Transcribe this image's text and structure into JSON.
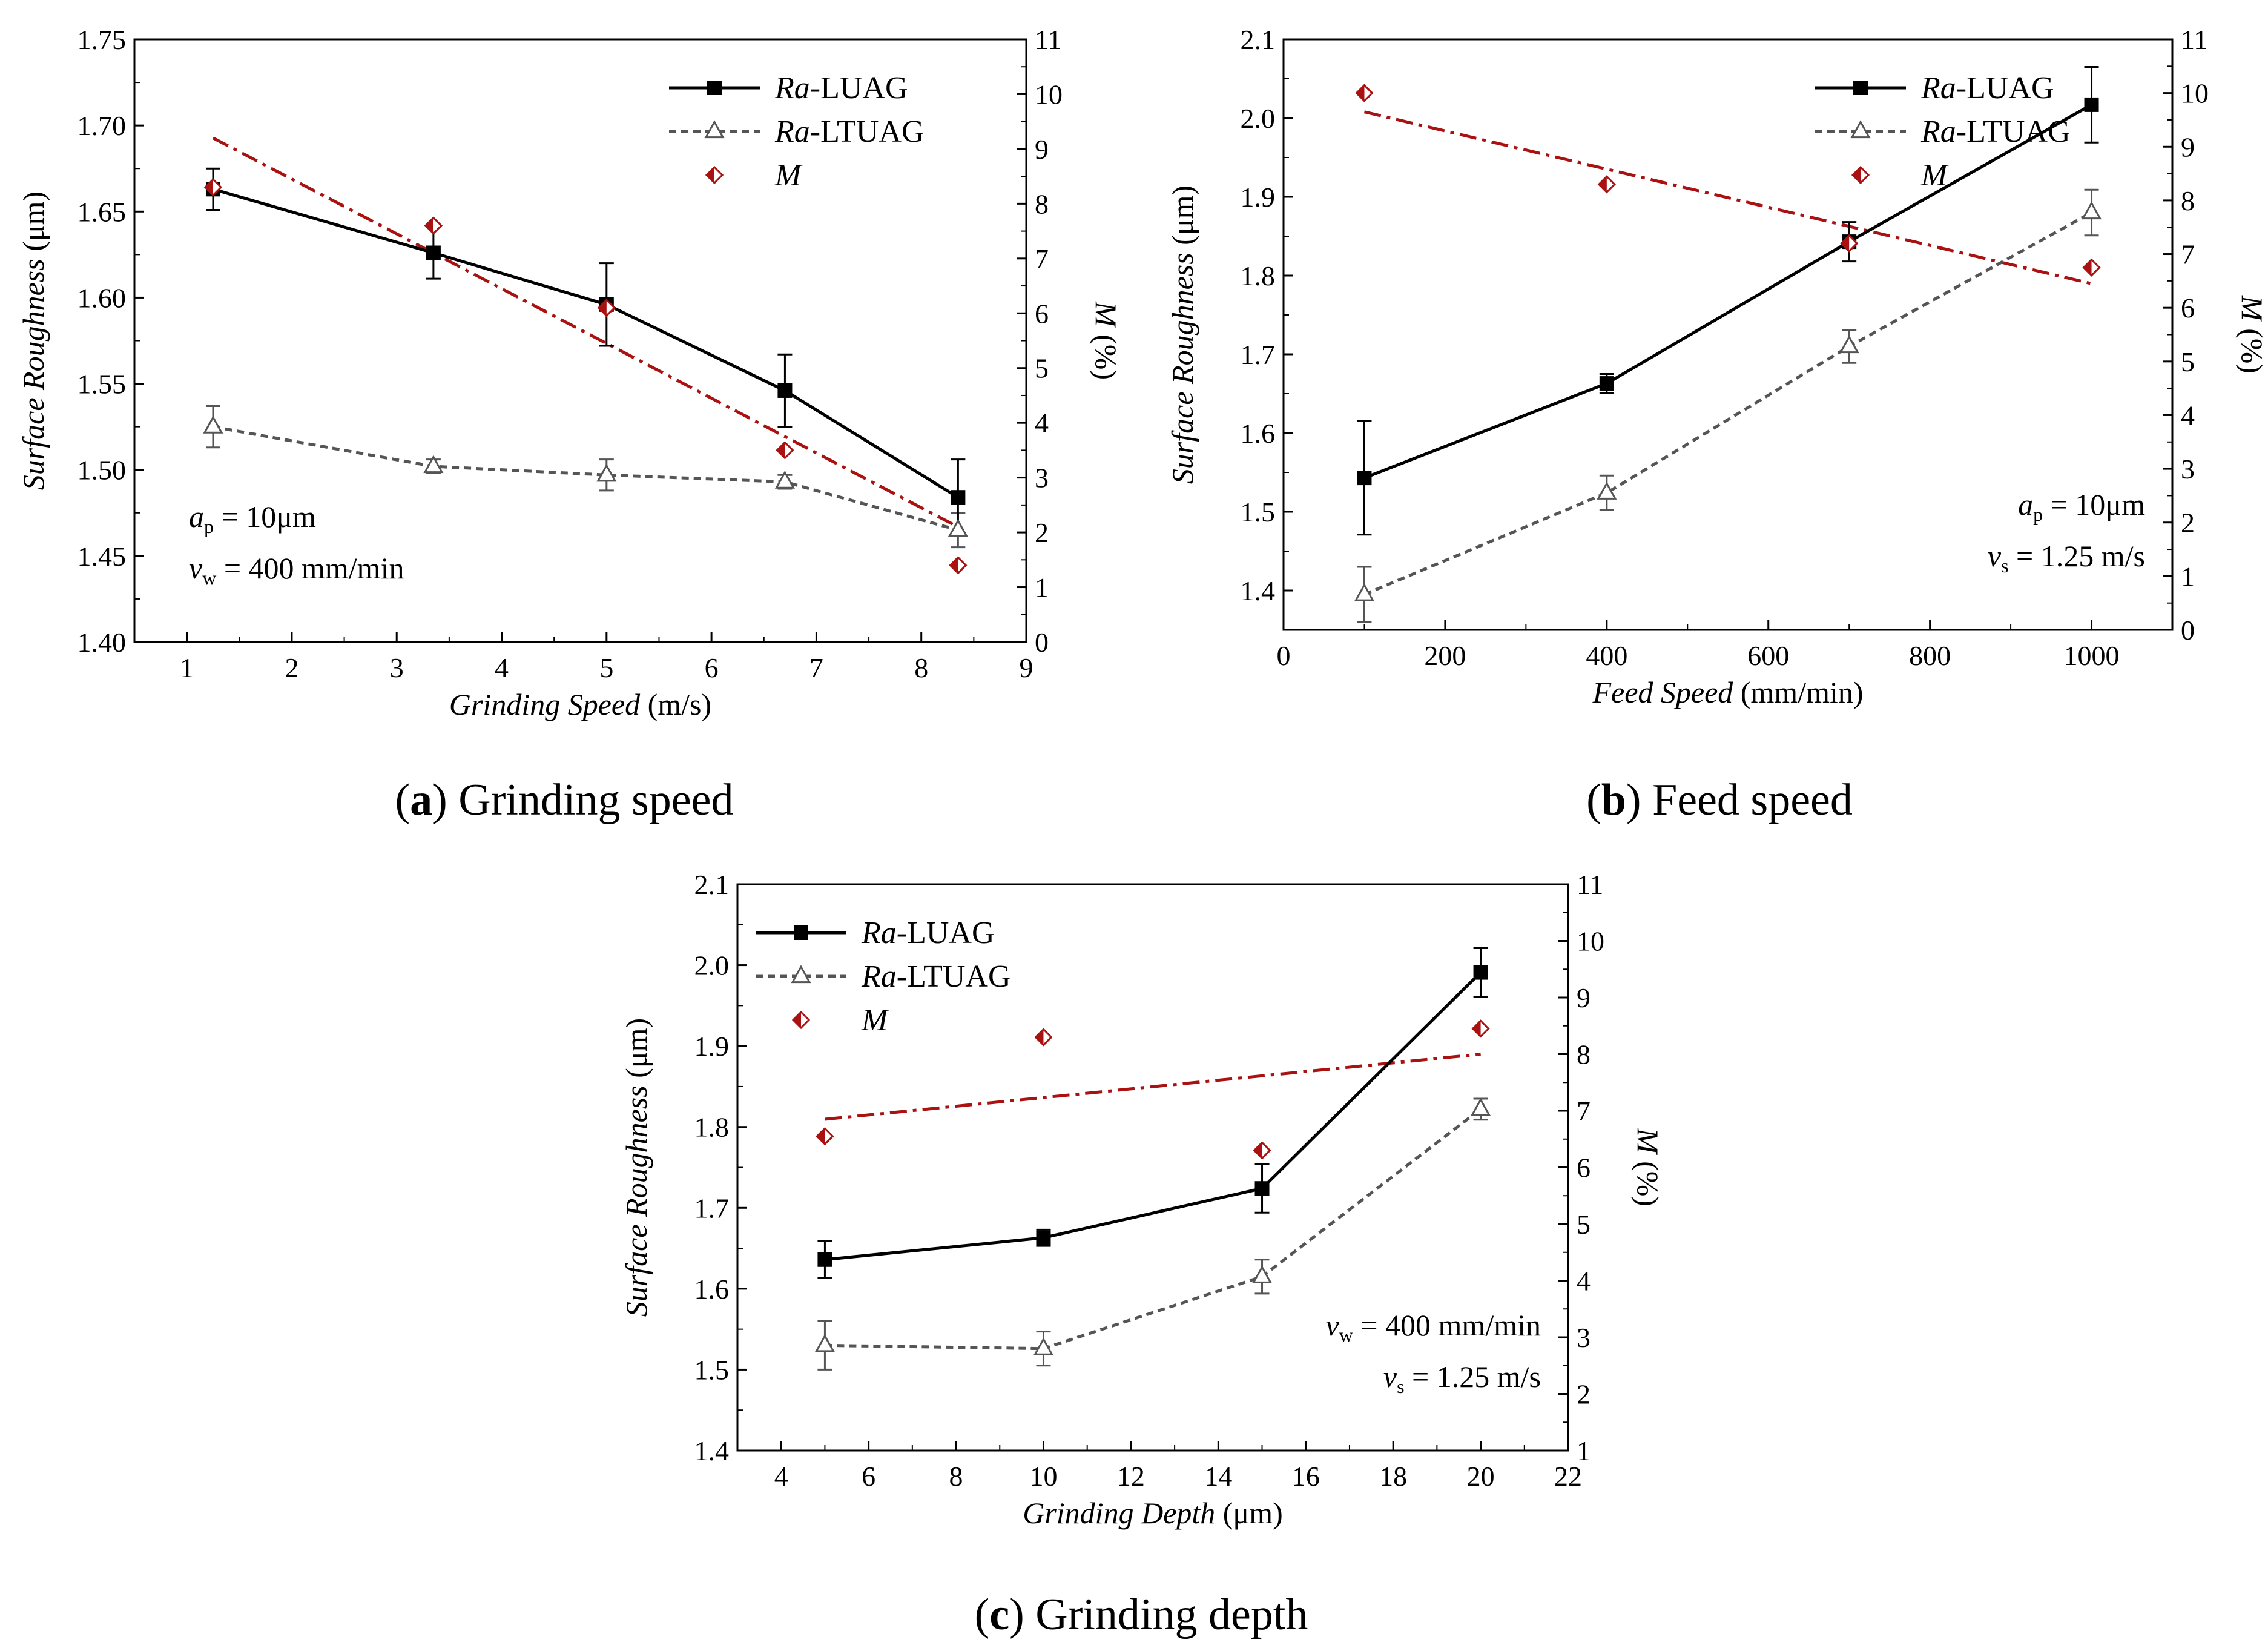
{
  "colors": {
    "luag": "#000000",
    "ltuag": "#555555",
    "m": "#aa1111"
  },
  "chart_data": [
    {
      "type": "line",
      "id": "a",
      "caption": {
        "letter": "(a)",
        "text": " Grinding speed"
      },
      "xlabel": {
        "italic": "Grinding Speed",
        "unit": " (m/s)"
      },
      "ylabel": {
        "italic": "Surface Roughness",
        "unit": " (μm)"
      },
      "y2label": {
        "italic": "M",
        "unit": " (%)"
      },
      "xlim": [
        0.5,
        9
      ],
      "ylim": [
        1.4,
        1.75
      ],
      "y2lim": [
        0,
        11
      ],
      "xticks": [
        "1",
        "2",
        "3",
        "4",
        "5",
        "6",
        "7",
        "8",
        "9"
      ],
      "yticks": [
        "1.40",
        "1.45",
        "1.50",
        "1.55",
        "1.60",
        "1.65",
        "1.70",
        "1.75"
      ],
      "y2ticks": [
        "0",
        "1",
        "2",
        "3",
        "4",
        "5",
        "6",
        "7",
        "8",
        "9",
        "10",
        "11"
      ],
      "legend": {
        "position": "top-right",
        "entries": [
          {
            "italic": "Ra",
            "text": "-LUAG"
          },
          {
            "italic": "Ra",
            "text": "-LTUAG"
          },
          {
            "italic": "M",
            "text": ""
          }
        ]
      },
      "conditions": [
        {
          "sym": "a",
          "sub": "p",
          "text": " = 10μm"
        },
        {
          "sym": "v",
          "sub": "w",
          "text": " = 400 mm/min"
        }
      ],
      "cond_position": "bottom-left",
      "series": [
        {
          "name": "Ra-LUAG",
          "x": [
            1.25,
            3.35,
            5.0,
            6.7,
            8.35
          ],
          "y": [
            1.663,
            1.626,
            1.596,
            1.546,
            1.484
          ],
          "err": [
            0.012,
            0.015,
            0.024,
            0.021,
            0.022
          ]
        },
        {
          "name": "Ra-LTUAG",
          "x": [
            1.25,
            3.35,
            5.0,
            6.7,
            8.35
          ],
          "y": [
            1.525,
            1.502,
            1.497,
            1.493,
            1.465
          ],
          "err": [
            0.012,
            0.004,
            0.009,
            0.004,
            0.01
          ]
        },
        {
          "name": "M",
          "x": [
            1.25,
            3.35,
            5.0,
            6.7,
            8.35
          ],
          "y2": [
            8.3,
            7.6,
            6.1,
            3.5,
            1.4
          ]
        }
      ],
      "fit": {
        "x": [
          1.25,
          8.35
        ],
        "y2": [
          9.2,
          2.1
        ]
      }
    },
    {
      "type": "line",
      "id": "b",
      "caption": {
        "letter": "(b)",
        "text": " Feed speed"
      },
      "xlabel": {
        "italic": "Feed Speed",
        "unit": " (mm/min)"
      },
      "ylabel": {
        "italic": "Surface Roughness",
        "unit": " (μm)"
      },
      "y2label": {
        "italic": "M",
        "unit": " (%)"
      },
      "xlim": [
        0,
        1100
      ],
      "ylim": [
        1.35,
        2.1
      ],
      "y2lim": [
        0,
        11
      ],
      "xticks": [
        "0",
        "200",
        "400",
        "600",
        "800",
        "1000"
      ],
      "yticks": [
        "1.4",
        "1.5",
        "1.6",
        "1.7",
        "1.8",
        "1.9",
        "2.0",
        "2.1"
      ],
      "y2ticks": [
        "0",
        "1",
        "2",
        "3",
        "4",
        "5",
        "6",
        "7",
        "8",
        "9",
        "10",
        "11"
      ],
      "legend": {
        "position": "top-right",
        "entries": [
          {
            "italic": "Ra",
            "text": "-LUAG"
          },
          {
            "italic": "Ra",
            "text": "-LTUAG"
          },
          {
            "italic": "M",
            "text": ""
          }
        ]
      },
      "conditions": [
        {
          "sym": "a",
          "sub": "p",
          "text": " = 10μm"
        },
        {
          "sym": "v",
          "sub": "s",
          "text": " = 1.25 m/s"
        }
      ],
      "cond_position": "bottom-right",
      "series": [
        {
          "name": "Ra-LUAG",
          "x": [
            100,
            400,
            700,
            1000
          ],
          "y": [
            1.543,
            1.663,
            1.843,
            2.017
          ],
          "err": [
            0.072,
            0.012,
            0.025,
            0.048
          ]
        },
        {
          "name": "Ra-LTUAG",
          "x": [
            100,
            400,
            700,
            1000
          ],
          "y": [
            1.395,
            1.524,
            1.71,
            1.88
          ],
          "err": [
            0.035,
            0.022,
            0.021,
            0.029
          ]
        },
        {
          "name": "M",
          "x": [
            100,
            400,
            700,
            1000
          ],
          "y2": [
            10.0,
            8.3,
            7.2,
            6.75
          ]
        }
      ],
      "fit": {
        "x": [
          100,
          1000
        ],
        "y2": [
          9.65,
          6.45
        ]
      }
    },
    {
      "type": "line",
      "id": "c",
      "caption": {
        "letter": "(c)",
        "text": " Grinding depth"
      },
      "xlabel": {
        "italic": "Grinding Depth",
        "unit": " (μm)"
      },
      "ylabel": {
        "italic": "Surface Roughness",
        "unit": " (μm)"
      },
      "y2label": {
        "italic": "M",
        "unit": " (%)"
      },
      "xlim": [
        3,
        22
      ],
      "ylim": [
        1.4,
        2.1
      ],
      "y2lim": [
        1,
        11
      ],
      "xticks": [
        "4",
        "6",
        "8",
        "10",
        "12",
        "14",
        "16",
        "18",
        "20",
        "22"
      ],
      "yticks": [
        "1.4",
        "1.5",
        "1.6",
        "1.7",
        "1.8",
        "1.9",
        "2.0",
        "2.1"
      ],
      "y2ticks": [
        "1",
        "2",
        "3",
        "4",
        "5",
        "6",
        "7",
        "8",
        "9",
        "10",
        "11"
      ],
      "legend": {
        "position": "top-left",
        "entries": [
          {
            "italic": "Ra",
            "text": "-LUAG"
          },
          {
            "italic": "Ra",
            "text": "-LTUAG"
          },
          {
            "italic": "M",
            "text": ""
          }
        ]
      },
      "conditions": [
        {
          "sym": "v",
          "sub": "w",
          "text": " = 400 mm/min"
        },
        {
          "sym": "v",
          "sub": "s",
          "text": " = 1.25 m/s"
        }
      ],
      "cond_position": "bottom-right",
      "series": [
        {
          "name": "Ra-LUAG",
          "x": [
            5,
            10,
            15,
            20
          ],
          "y": [
            1.636,
            1.663,
            1.724,
            1.991
          ],
          "err": [
            0.023,
            0.01,
            0.03,
            0.03
          ]
        },
        {
          "name": "Ra-LTUAG",
          "x": [
            5,
            10,
            15,
            20
          ],
          "y": [
            1.53,
            1.526,
            1.615,
            1.822
          ],
          "err": [
            0.03,
            0.021,
            0.021,
            0.013
          ]
        },
        {
          "name": "M",
          "x": [
            5,
            10,
            15,
            20
          ],
          "y2": [
            6.55,
            8.3,
            6.3,
            8.45
          ]
        }
      ],
      "fit": {
        "x": [
          5,
          20
        ],
        "y2": [
          6.85,
          8.0
        ]
      }
    }
  ]
}
